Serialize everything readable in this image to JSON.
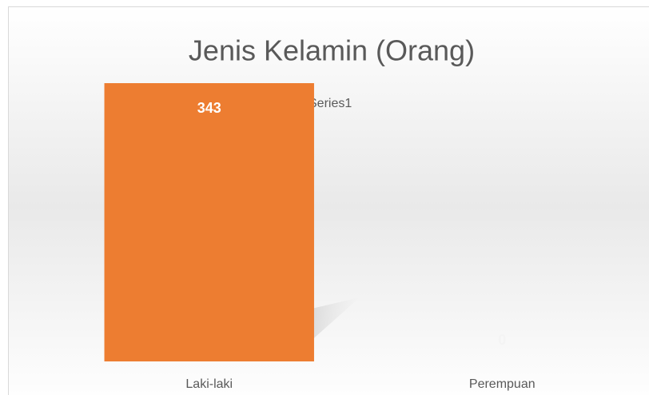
{
  "chart_data": {
    "type": "bar",
    "title": "Jenis Kelamin (Orang)",
    "categories": [
      "Laki-laki",
      "Perempuan"
    ],
    "values": [
      343,
      0
    ],
    "color": "#ed7d31",
    "series_name": "Series1"
  }
}
